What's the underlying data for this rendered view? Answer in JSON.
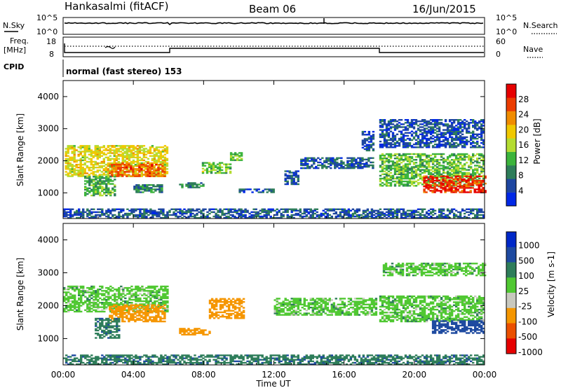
{
  "header": {
    "station": "Hankasalmi (fitACF)",
    "beam": "Beam 06",
    "date": "16/Jun/2015"
  },
  "noise_panel": {
    "left_label": "N.Sky",
    "left_ticks": [
      "10^5",
      "10^0"
    ],
    "right_ticks": [
      "10^5",
      "10^0"
    ],
    "right_label": "N.Search"
  },
  "freq_panel": {
    "left_label_1": "Freq.",
    "left_label_2": "[MHz]",
    "left_ticks": [
      "18",
      "8"
    ],
    "right_ticks": [
      "60",
      "0"
    ],
    "right_label": "Nave"
  },
  "cpid": {
    "label": "CPID",
    "mode": "normal (fast stereo) 153"
  },
  "x_axis": {
    "label": "Time UT",
    "ticks": [
      "00:00",
      "04:00",
      "08:00",
      "12:00",
      "16:00",
      "20:00",
      "00:00"
    ]
  },
  "colors": {
    "power": [
      "#0028e6",
      "#1e46a0",
      "#2e7d5a",
      "#3cb43c",
      "#b4dc32",
      "#f0c800",
      "#f08c00",
      "#eb3c00",
      "#e60000"
    ],
    "velocity": [
      "#e60000",
      "#eb5000",
      "#f59600",
      "#c8c8be",
      "#50c832",
      "#2e7d5a",
      "#1e4aa0",
      "#0028c8"
    ]
  },
  "chart_data": [
    {
      "type": "heatmap",
      "title": "Power",
      "ylabel": "Slant Range [km]",
      "xlabel": "",
      "ylim": [
        200,
        4500
      ],
      "xlim": [
        0,
        24
      ],
      "yticks": [
        "1000",
        "2000",
        "3000",
        "4000"
      ],
      "colorbar": {
        "label": "Power [dB]",
        "ticks": [
          "4",
          "8",
          "12",
          "16",
          "20",
          "24",
          "28"
        ],
        "range": [
          0,
          32
        ]
      },
      "regions": [
        {
          "t": [
            0.1,
            5.9
          ],
          "r": [
            1500,
            2450
          ],
          "value": 18
        },
        {
          "t": [
            2.6,
            5.8
          ],
          "r": [
            1500,
            1950
          ],
          "value": 25
        },
        {
          "t": [
            1.2,
            3.0
          ],
          "r": [
            900,
            1500
          ],
          "value": 12
        },
        {
          "t": [
            4.0,
            5.6
          ],
          "r": [
            1000,
            1250
          ],
          "value": 9
        },
        {
          "t": [
            6.6,
            8.0
          ],
          "r": [
            1150,
            1300
          ],
          "value": 9
        },
        {
          "t": [
            7.9,
            9.5
          ],
          "r": [
            1600,
            1950
          ],
          "value": 14
        },
        {
          "t": [
            9.5,
            10.2
          ],
          "r": [
            2000,
            2250
          ],
          "value": 13
        },
        {
          "t": [
            10.0,
            12.0
          ],
          "r": [
            1000,
            1100
          ],
          "value": 6
        },
        {
          "t": [
            13.5,
            17.7
          ],
          "r": [
            1750,
            2100
          ],
          "value": 6
        },
        {
          "t": [
            12.6,
            13.4
          ],
          "r": [
            1250,
            1700
          ],
          "value": 6
        },
        {
          "t": [
            17.0,
            17.7
          ],
          "r": [
            2300,
            2900
          ],
          "value": 5
        },
        {
          "t": [
            18.0,
            24.0
          ],
          "r": [
            1200,
            2200
          ],
          "value": 13
        },
        {
          "t": [
            20.5,
            24.0
          ],
          "r": [
            1000,
            1500
          ],
          "value": 28
        },
        {
          "t": [
            18.0,
            24.0
          ],
          "r": [
            2400,
            3300
          ],
          "value": 5
        },
        {
          "t": [
            0.0,
            24.0
          ],
          "r": [
            200,
            480
          ],
          "value": 6
        }
      ]
    },
    {
      "type": "heatmap",
      "title": "Velocity",
      "ylabel": "Slant Range [km]",
      "xlabel": "Time UT",
      "ylim": [
        200,
        4500
      ],
      "xlim": [
        0,
        24
      ],
      "yticks": [
        "1000",
        "2000",
        "3000",
        "4000"
      ],
      "colorbar": {
        "label": "Velocity [m s-1]",
        "ticks": [
          "1000",
          "500",
          "100",
          "25",
          "-25",
          "-100",
          "-500",
          "-1000"
        ]
      },
      "regions": [
        {
          "t": [
            0.0,
            5.9
          ],
          "r": [
            1800,
            2600
          ],
          "value": 0
        },
        {
          "t": [
            2.6,
            5.8
          ],
          "r": [
            1500,
            2000
          ],
          "value": -300
        },
        {
          "t": [
            1.8,
            3.2
          ],
          "r": [
            1000,
            1600
          ],
          "value": 80
        },
        {
          "t": [
            6.6,
            8.3
          ],
          "r": [
            1100,
            1300
          ],
          "value": -200
        },
        {
          "t": [
            8.3,
            10.3
          ],
          "r": [
            1600,
            2200
          ],
          "value": -400
        },
        {
          "t": [
            12.0,
            17.8
          ],
          "r": [
            1700,
            2200
          ],
          "value": 0
        },
        {
          "t": [
            18.0,
            24.0
          ],
          "r": [
            1500,
            2300
          ],
          "value": 0
        },
        {
          "t": [
            21.0,
            24.0
          ],
          "r": [
            1150,
            1550
          ],
          "value": 400
        },
        {
          "t": [
            18.2,
            24.0
          ],
          "r": [
            2900,
            3300
          ],
          "value": 0
        },
        {
          "t": [
            0.0,
            24.0
          ],
          "r": [
            200,
            480
          ],
          "value": 80
        }
      ]
    }
  ]
}
